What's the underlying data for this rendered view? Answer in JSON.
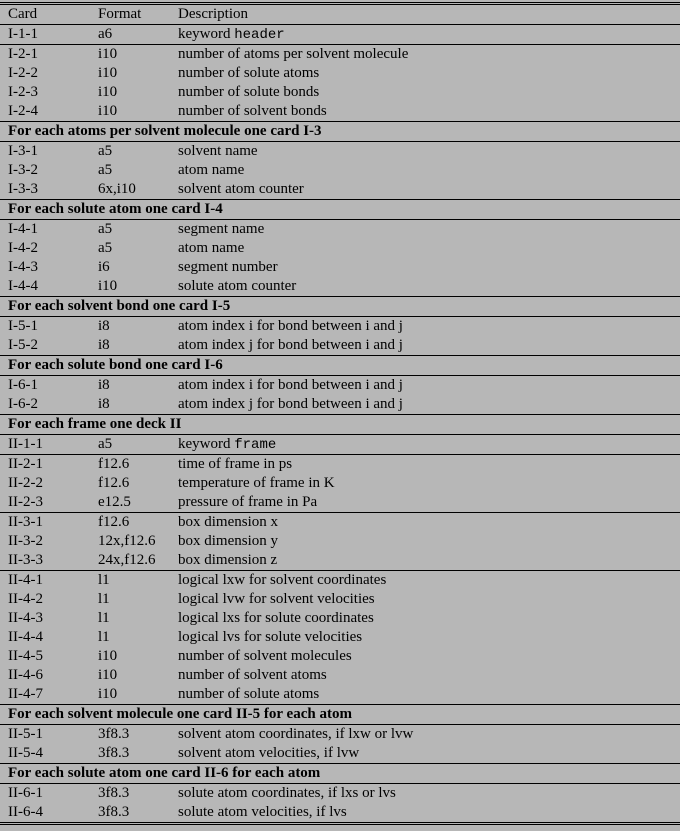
{
  "columns": {
    "card": "Card",
    "format": "Format",
    "desc": "Description"
  },
  "sections": [
    {
      "header": null,
      "subgroups": [
        {
          "rows": [
            {
              "card": "I-1-1",
              "format": "a6",
              "desc_pre": "keyword ",
              "desc_mono": "header"
            }
          ]
        },
        {
          "rows": [
            {
              "card": "I-2-1",
              "format": "i10",
              "desc": "number of atoms per solvent molecule"
            },
            {
              "card": "I-2-2",
              "format": "i10",
              "desc": "number of solute atoms"
            },
            {
              "card": "I-2-3",
              "format": "i10",
              "desc": "number of solute bonds"
            },
            {
              "card": "I-2-4",
              "format": "i10",
              "desc": "number of solvent bonds"
            }
          ]
        }
      ]
    },
    {
      "header": "For each atoms per solvent molecule one card I-3",
      "subgroups": [
        {
          "rows": [
            {
              "card": "I-3-1",
              "format": "a5",
              "desc": "solvent name"
            },
            {
              "card": "I-3-2",
              "format": "a5",
              "desc": "atom name"
            },
            {
              "card": "I-3-3",
              "format": "6x,i10",
              "desc": "solvent atom counter"
            }
          ]
        }
      ]
    },
    {
      "header": "For each solute atom one card I-4",
      "subgroups": [
        {
          "rows": [
            {
              "card": "I-4-1",
              "format": "a5",
              "desc": "segment name"
            },
            {
              "card": "I-4-2",
              "format": "a5",
              "desc": "atom name"
            },
            {
              "card": "I-4-3",
              "format": "i6",
              "desc": "segment number"
            },
            {
              "card": "I-4-4",
              "format": "i10",
              "desc": "solute atom counter"
            }
          ]
        }
      ]
    },
    {
      "header": "For each solvent bond one card I-5",
      "subgroups": [
        {
          "rows": [
            {
              "card": "I-5-1",
              "format": "i8",
              "desc": "atom index i for bond between i and j"
            },
            {
              "card": "I-5-2",
              "format": "i8",
              "desc": "atom index j for bond between i and j"
            }
          ]
        }
      ]
    },
    {
      "header": "For each solute bond one card I-6",
      "subgroups": [
        {
          "rows": [
            {
              "card": "I-6-1",
              "format": "i8",
              "desc": "atom index i for bond between i and j"
            },
            {
              "card": "I-6-2",
              "format": "i8",
              "desc": "atom index j for bond between i and j"
            }
          ]
        }
      ]
    },
    {
      "header": "For each frame one deck II",
      "subgroups": [
        {
          "rows": [
            {
              "card": "II-1-1",
              "format": "a5",
              "desc_pre": "keyword ",
              "desc_mono": "frame"
            }
          ]
        },
        {
          "rows": [
            {
              "card": "II-2-1",
              "format": "f12.6",
              "desc": "time of frame in ps"
            },
            {
              "card": "II-2-2",
              "format": "f12.6",
              "desc": "temperature of frame in K"
            },
            {
              "card": "II-2-3",
              "format": "e12.5",
              "desc": "pressure of frame in Pa"
            }
          ]
        },
        {
          "rows": [
            {
              "card": "II-3-1",
              "format": "f12.6",
              "desc": "box dimension x"
            },
            {
              "card": "II-3-2",
              "format": "12x,f12.6",
              "desc": "box dimension y"
            },
            {
              "card": "II-3-3",
              "format": "24x,f12.6",
              "desc": "box dimension z"
            }
          ]
        },
        {
          "rows": [
            {
              "card": "II-4-1",
              "format": "l1",
              "desc": "logical lxw for solvent coordinates"
            },
            {
              "card": "II-4-2",
              "format": "l1",
              "desc": "logical lvw for solvent velocities"
            },
            {
              "card": "II-4-3",
              "format": "l1",
              "desc": "logical lxs for solute coordinates"
            },
            {
              "card": "II-4-4",
              "format": "l1",
              "desc": "logical lvs for solute velocities"
            },
            {
              "card": "II-4-5",
              "format": "i10",
              "desc": "number of solvent molecules"
            },
            {
              "card": "II-4-6",
              "format": "i10",
              "desc": "number of solvent atoms"
            },
            {
              "card": "II-4-7",
              "format": "i10",
              "desc": "number of solute atoms"
            }
          ]
        }
      ]
    },
    {
      "header": "For each solvent molecule one card II-5 for each atom",
      "subgroups": [
        {
          "rows": [
            {
              "card": "II-5-1",
              "format": "3f8.3",
              "desc": "solvent atom coordinates, if lxw or lvw"
            },
            {
              "card": "II-5-4",
              "format": "3f8.3",
              "desc": "solvent atom velocities, if lvw"
            }
          ]
        }
      ]
    },
    {
      "header": "For each solute atom one card II-6 for each atom",
      "subgroups": [
        {
          "rows": [
            {
              "card": "II-6-1",
              "format": "3f8.3",
              "desc": "solute atom coordinates, if lxs or lvs"
            },
            {
              "card": "II-6-4",
              "format": "3f8.3",
              "desc": "solute atom velocities, if lvs"
            }
          ]
        }
      ]
    }
  ]
}
